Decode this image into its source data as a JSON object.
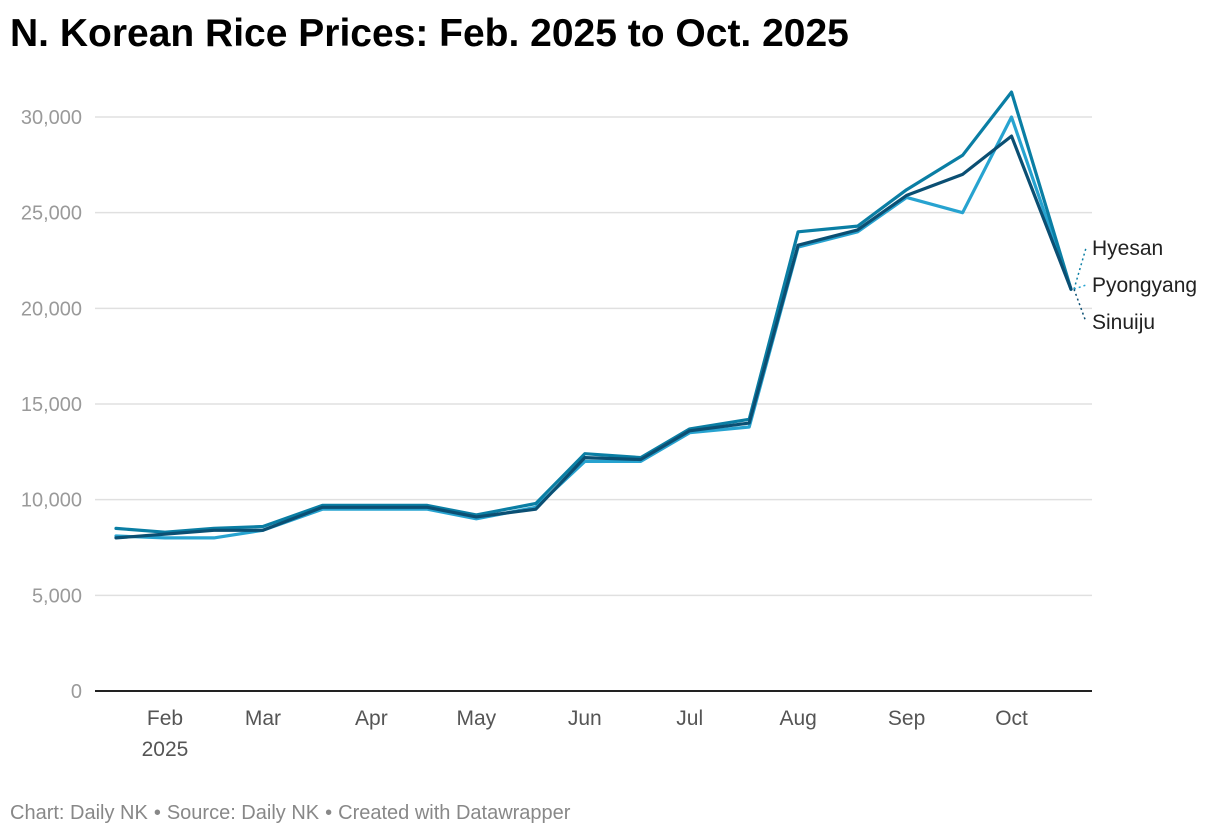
{
  "chart_data": {
    "type": "line",
    "title": "N. Korean Rice Prices: Feb. 2025 to Oct. 2025",
    "xlabel": "",
    "ylabel": "",
    "ylim": [
      0,
      30000
    ],
    "yticks": [
      0,
      5000,
      10000,
      15000,
      20000,
      25000,
      30000
    ],
    "ytick_labels": [
      "0",
      "5,000",
      "10,000",
      "15,000",
      "20,000",
      "25,000",
      "30,000"
    ],
    "xtick_labels": [
      {
        "label": "Feb",
        "sub": "2025"
      },
      {
        "label": "Mar",
        "sub": ""
      },
      {
        "label": "Apr",
        "sub": ""
      },
      {
        "label": "May",
        "sub": ""
      },
      {
        "label": "Jun",
        "sub": ""
      },
      {
        "label": "Jul",
        "sub": ""
      },
      {
        "label": "Aug",
        "sub": ""
      },
      {
        "label": "Sep",
        "sub": ""
      },
      {
        "label": "Oct",
        "sub": ""
      }
    ],
    "x": [
      "2025-02-01",
      "2025-02-15",
      "2025-03-01",
      "2025-03-15",
      "2025-04-01",
      "2025-04-15",
      "2025-05-01",
      "2025-05-15",
      "2025-06-01",
      "2025-06-15",
      "2025-07-01",
      "2025-07-15",
      "2025-08-01",
      "2025-08-15",
      "2025-09-01",
      "2025-09-15",
      "2025-10-01",
      "2025-10-15",
      "2025-11-01"
    ],
    "series": [
      {
        "name": "Hyesan",
        "color": "#0a7ea4",
        "values": [
          8500,
          8300,
          8500,
          8600,
          9700,
          9700,
          9700,
          9200,
          9800,
          12400,
          12200,
          13700,
          14200,
          24000,
          24300,
          26200,
          28000,
          31300,
          21000
        ]
      },
      {
        "name": "Pyongyang",
        "color": "#27a3d0",
        "values": [
          8100,
          8000,
          8000,
          8400,
          9500,
          9500,
          9500,
          9000,
          9600,
          12000,
          12000,
          13500,
          13800,
          23200,
          24000,
          25800,
          25000,
          30000,
          21000
        ]
      },
      {
        "name": "Sinuiju",
        "color": "#0b4f73",
        "values": [
          8000,
          8200,
          8400,
          8400,
          9600,
          9600,
          9600,
          9100,
          9500,
          12200,
          12100,
          13600,
          14000,
          23300,
          24100,
          25900,
          27000,
          29000,
          21000
        ]
      }
    ],
    "grid": true,
    "legend_placement": "right, at line ends"
  },
  "footer": {
    "chart_credit": "Chart: Daily NK",
    "source": "Source: Daily NK",
    "tool": "Created with Datawrapper",
    "separator": "•"
  },
  "colors": {
    "grid": "#e0e0e0",
    "axis": "#222222",
    "tick_label": "#9a9a9a",
    "x_label": "#555555",
    "footer": "#888888"
  }
}
